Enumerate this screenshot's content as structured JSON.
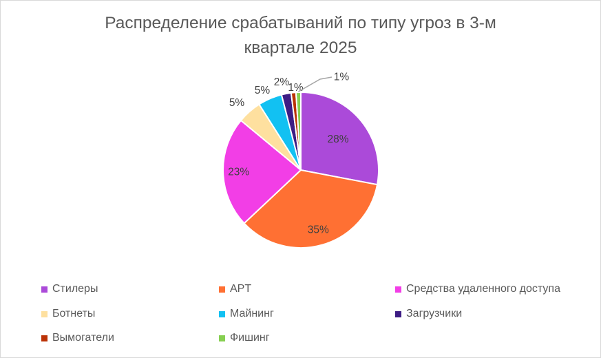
{
  "chart_data": {
    "type": "pie",
    "title_lines": [
      "Распределение срабатываний по типу угроз в 3-м",
      "квартале 2025"
    ],
    "categories": [
      "Стилеры",
      "APT",
      "Средства удаленного доступа",
      "Ботнеты",
      "Майнинг",
      "Загрузчики",
      "Вымогатели",
      "Фишинг"
    ],
    "values": [
      28,
      35,
      23,
      5,
      5,
      2,
      1,
      1
    ],
    "labels": [
      "28%",
      "35%",
      "23%",
      "5%",
      "5%",
      "2%",
      "1%",
      "1%"
    ],
    "colors": [
      "#ab4ad9",
      "#ff7033",
      "#f23ee6",
      "#fee09f",
      "#12c1f2",
      "#3d1d84",
      "#bb3206",
      "#86cf51"
    ],
    "legend_position": "bottom"
  }
}
